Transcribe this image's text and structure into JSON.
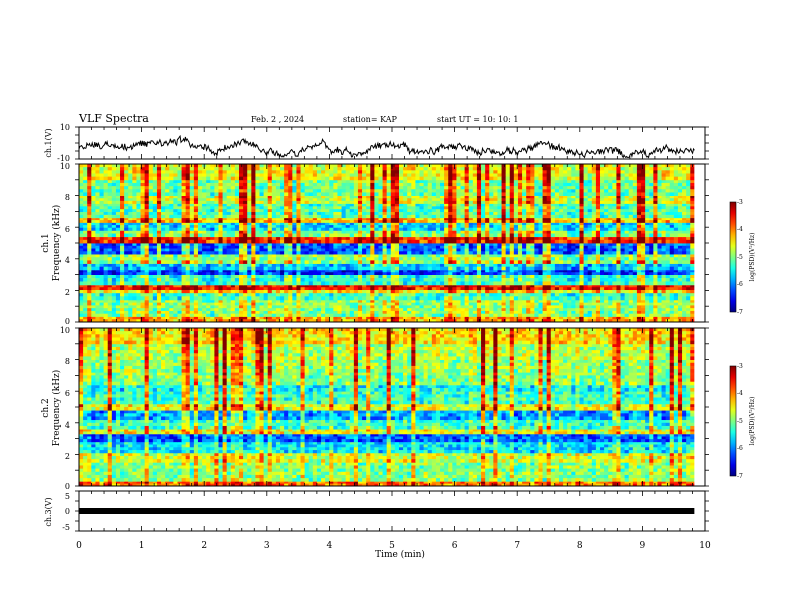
{
  "header": {
    "title": "VLF Spectra",
    "date": "Feb. 2 , 2024",
    "station": "station= KAP",
    "start": "start  UT =   10: 10: 1"
  },
  "colors": {
    "trace": "#000000",
    "frame": "#000000"
  },
  "chart_data": [
    {
      "type": "line",
      "ylabel": "ch.1(V)",
      "ylim": [
        -10,
        10
      ],
      "yticks": [
        "10",
        "-10"
      ],
      "xlim": [
        0,
        10
      ],
      "x_end": 9.83,
      "baseline": -3,
      "amplitude": 3.5
    },
    {
      "type": "heatmap",
      "ylabel_line1": "ch.1",
      "ylabel_line2": "Frequency  (kHz)",
      "ylim": [
        0,
        10
      ],
      "yticks": [
        "0",
        "2",
        "4",
        "6",
        "8",
        "10"
      ],
      "xlim": [
        0,
        9.83
      ],
      "colorbar": {
        "label": "log(PSD)(V²/Hz)",
        "range": [
          -7,
          -3
        ],
        "ticks": [
          "-3",
          "-4",
          "-5",
          "-6",
          "-7"
        ]
      },
      "bands_khz": [
        {
          "f": [
            0.0,
            0.35
          ],
          "v": -4.2
        },
        {
          "f": [
            0.35,
            1.4
          ],
          "v": -5.0
        },
        {
          "f": [
            1.4,
            1.85
          ],
          "v": -5.4
        },
        {
          "f": [
            1.85,
            2.05
          ],
          "v": -4.5
        },
        {
          "f": [
            2.05,
            2.35
          ],
          "v": -3.6
        },
        {
          "f": [
            2.35,
            3.0
          ],
          "v": -5.4
        },
        {
          "f": [
            3.0,
            3.3
          ],
          "v": -6.4
        },
        {
          "f": [
            3.3,
            3.7
          ],
          "v": -5.8
        },
        {
          "f": [
            3.7,
            4.3
          ],
          "v": -5.0
        },
        {
          "f": [
            4.3,
            5.0
          ],
          "v": -6.2
        },
        {
          "f": [
            5.0,
            5.4
          ],
          "v": -3.7
        },
        {
          "f": [
            5.4,
            5.8
          ],
          "v": -5.0
        },
        {
          "f": [
            5.8,
            6.3
          ],
          "v": -5.7
        },
        {
          "f": [
            6.3,
            6.6
          ],
          "v": -4.3
        },
        {
          "f": [
            6.6,
            7.5
          ],
          "v": -5.2
        },
        {
          "f": [
            7.5,
            8.0
          ],
          "v": -4.7
        },
        {
          "f": [
            8.0,
            9.0
          ],
          "v": -5.1
        },
        {
          "f": [
            9.0,
            10.0
          ],
          "v": -4.6
        }
      ]
    },
    {
      "type": "heatmap",
      "ylabel_line1": "ch.2",
      "ylabel_line2": "Frequency  (kHz)",
      "ylim": [
        0,
        10
      ],
      "yticks": [
        "0",
        "2",
        "4",
        "6",
        "8",
        "10"
      ],
      "xlim": [
        0,
        9.83
      ],
      "colorbar": {
        "label": "log(PSD)(V²/Hz)",
        "range": [
          -7,
          -3
        ],
        "ticks": [
          "-3",
          "-4",
          "-5",
          "-6",
          "-7"
        ]
      },
      "bands_khz": [
        {
          "f": [
            0.0,
            0.3
          ],
          "v": -4.0
        },
        {
          "f": [
            0.3,
            1.5
          ],
          "v": -5.0
        },
        {
          "f": [
            1.5,
            2.1
          ],
          "v": -4.7
        },
        {
          "f": [
            2.1,
            2.8
          ],
          "v": -5.6
        },
        {
          "f": [
            2.8,
            3.3
          ],
          "v": -6.2
        },
        {
          "f": [
            3.3,
            3.6
          ],
          "v": -4.6
        },
        {
          "f": [
            3.6,
            4.2
          ],
          "v": -5.3
        },
        {
          "f": [
            4.2,
            4.8
          ],
          "v": -5.9
        },
        {
          "f": [
            4.8,
            5.2
          ],
          "v": -4.6
        },
        {
          "f": [
            5.2,
            6.0
          ],
          "v": -5.3
        },
        {
          "f": [
            6.0,
            6.4
          ],
          "v": -5.5
        },
        {
          "f": [
            6.4,
            7.2
          ],
          "v": -5.0
        },
        {
          "f": [
            7.2,
            8.0
          ],
          "v": -4.9
        },
        {
          "f": [
            8.0,
            9.0
          ],
          "v": -4.8
        },
        {
          "f": [
            9.0,
            10.0
          ],
          "v": -4.4
        }
      ]
    },
    {
      "type": "line",
      "ylabel": "ch.3(V)",
      "ylim": [
        -5,
        5
      ],
      "yticks": [
        "5",
        "0",
        "-5"
      ],
      "xlim": [
        0,
        10
      ],
      "x_end": 9.83,
      "level": 0,
      "xlabel": "Time  (min)",
      "xticks": [
        "0",
        "1",
        "2",
        "3",
        "4",
        "5",
        "6",
        "7",
        "8",
        "9",
        "10"
      ]
    }
  ]
}
